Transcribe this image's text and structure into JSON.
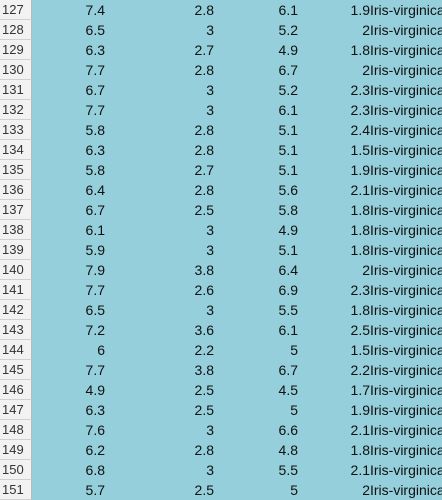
{
  "rows": [
    {
      "n": "127",
      "a": "7.4",
      "b": "2.8",
      "c": "6.1",
      "d": "1.9",
      "e": "Iris-virginica"
    },
    {
      "n": "128",
      "a": "6.5",
      "b": "3",
      "c": "5.2",
      "d": "2",
      "e": "Iris-virginica"
    },
    {
      "n": "129",
      "a": "6.3",
      "b": "2.7",
      "c": "4.9",
      "d": "1.8",
      "e": "Iris-virginica"
    },
    {
      "n": "130",
      "a": "7.7",
      "b": "2.8",
      "c": "6.7",
      "d": "2",
      "e": "Iris-virginica"
    },
    {
      "n": "131",
      "a": "6.7",
      "b": "3",
      "c": "5.2",
      "d": "2.3",
      "e": "Iris-virginica"
    },
    {
      "n": "132",
      "a": "7.7",
      "b": "3",
      "c": "6.1",
      "d": "2.3",
      "e": "Iris-virginica"
    },
    {
      "n": "133",
      "a": "5.8",
      "b": "2.8",
      "c": "5.1",
      "d": "2.4",
      "e": "Iris-virginica"
    },
    {
      "n": "134",
      "a": "6.3",
      "b": "2.8",
      "c": "5.1",
      "d": "1.5",
      "e": "Iris-virginica"
    },
    {
      "n": "135",
      "a": "5.8",
      "b": "2.7",
      "c": "5.1",
      "d": "1.9",
      "e": "Iris-virginica"
    },
    {
      "n": "136",
      "a": "6.4",
      "b": "2.8",
      "c": "5.6",
      "d": "2.1",
      "e": "Iris-virginica"
    },
    {
      "n": "137",
      "a": "6.7",
      "b": "2.5",
      "c": "5.8",
      "d": "1.8",
      "e": "Iris-virginica"
    },
    {
      "n": "138",
      "a": "6.1",
      "b": "3",
      "c": "4.9",
      "d": "1.8",
      "e": "Iris-virginica"
    },
    {
      "n": "139",
      "a": "5.9",
      "b": "3",
      "c": "5.1",
      "d": "1.8",
      "e": "Iris-virginica"
    },
    {
      "n": "140",
      "a": "7.9",
      "b": "3.8",
      "c": "6.4",
      "d": "2",
      "e": "Iris-virginica"
    },
    {
      "n": "141",
      "a": "7.7",
      "b": "2.6",
      "c": "6.9",
      "d": "2.3",
      "e": "Iris-virginica"
    },
    {
      "n": "142",
      "a": "6.5",
      "b": "3",
      "c": "5.5",
      "d": "1.8",
      "e": "Iris-virginica"
    },
    {
      "n": "143",
      "a": "7.2",
      "b": "3.6",
      "c": "6.1",
      "d": "2.5",
      "e": "Iris-virginica"
    },
    {
      "n": "144",
      "a": "6",
      "b": "2.2",
      "c": "5",
      "d": "1.5",
      "e": "Iris-virginica"
    },
    {
      "n": "145",
      "a": "7.7",
      "b": "3.8",
      "c": "6.7",
      "d": "2.2",
      "e": "Iris-virginica"
    },
    {
      "n": "146",
      "a": "4.9",
      "b": "2.5",
      "c": "4.5",
      "d": "1.7",
      "e": "Iris-virginica"
    },
    {
      "n": "147",
      "a": "6.3",
      "b": "2.5",
      "c": "5",
      "d": "1.9",
      "e": "Iris-virginica"
    },
    {
      "n": "148",
      "a": "7.6",
      "b": "3",
      "c": "6.6",
      "d": "2.1",
      "e": "Iris-virginica"
    },
    {
      "n": "149",
      "a": "6.2",
      "b": "2.8",
      "c": "4.8",
      "d": "1.8",
      "e": "Iris-virginica"
    },
    {
      "n": "150",
      "a": "6.8",
      "b": "3",
      "c": "5.5",
      "d": "2.1",
      "e": "Iris-virginica"
    },
    {
      "n": "151",
      "a": "5.7",
      "b": "2.5",
      "c": "5",
      "d": "2",
      "e": "Iris-virginica"
    }
  ],
  "colors": {
    "cell_fill": "#94cfdb",
    "header_fill": "#f2f2f2"
  }
}
